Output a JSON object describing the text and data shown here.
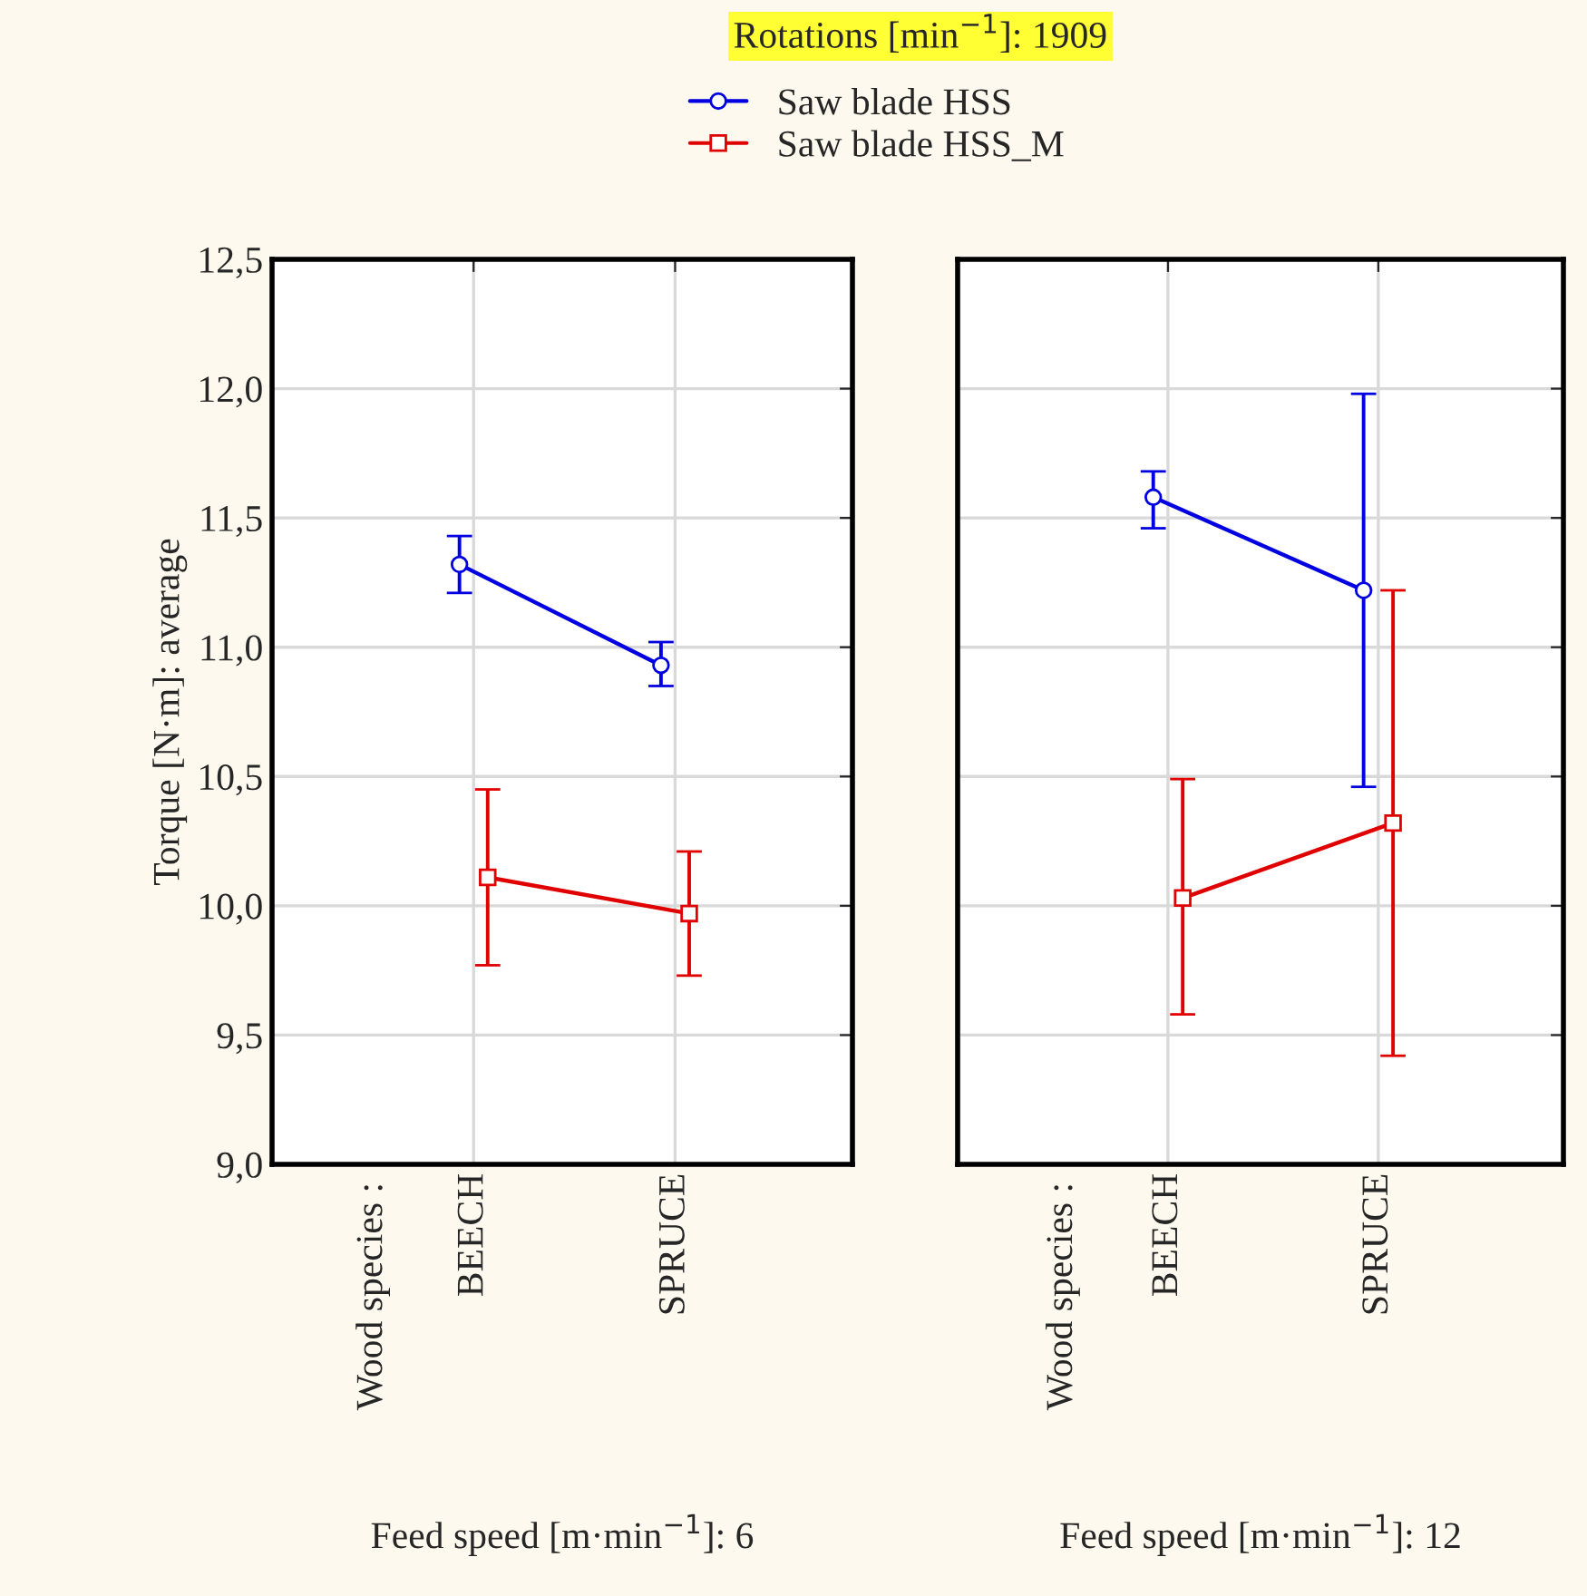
{
  "chart_data": [
    {
      "type": "line",
      "title": "Rotations [min$^{−1}$]: 1909",
      "xlabel": "Feed speed [m·min$^{−1}$]: 6",
      "ylabel": "Torque [N·m]: average",
      "annotations": [
        "Wood species :"
      ],
      "categories": [
        "BEECH",
        "SPRUCE"
      ],
      "series": [
        {
          "name": "Saw blade HSS",
          "color": "#0000e0",
          "marker": "circle",
          "values": [
            11.32,
            10.93
          ],
          "errors": [
            [
              11.21,
              11.43
            ],
            [
              10.85,
              11.02
            ]
          ]
        },
        {
          "name": "Saw blade HSS_M",
          "color": "#e00000",
          "marker": "square",
          "values": [
            10.11,
            9.97
          ],
          "errors": [
            [
              9.77,
              10.45
            ],
            [
              9.73,
              10.21
            ]
          ]
        }
      ],
      "ylim": [
        9.0,
        12.5
      ],
      "yticks": [
        {
          "value": 9.0,
          "label": "9,0"
        },
        {
          "value": 9.5,
          "label": "9,5"
        },
        {
          "value": 10.0,
          "label": "10,0"
        },
        {
          "value": 10.5,
          "label": "10,5"
        },
        {
          "value": 11.0,
          "label": "11,0"
        },
        {
          "value": 11.5,
          "label": "11,5"
        },
        {
          "value": 12.0,
          "label": "12,0"
        },
        {
          "value": 12.5,
          "label": "12,5"
        }
      ],
      "grid": true,
      "legend": "top"
    },
    {
      "type": "line",
      "xlabel": "Feed speed [m·min$^{−1}$]: 12",
      "annotations": [
        "Wood species :"
      ],
      "categories": [
        "BEECH",
        "SPRUCE"
      ],
      "series": [
        {
          "color": "#0000e0",
          "marker": "circle",
          "values": [
            11.58,
            11.22
          ],
          "errors": [
            [
              11.46,
              11.68
            ],
            [
              10.46,
              11.98
            ]
          ]
        },
        {
          "color": "#e00000",
          "marker": "square",
          "values": [
            10.03,
            10.32
          ],
          "errors": [
            [
              9.58,
              10.49
            ],
            [
              9.42,
              11.22
            ]
          ]
        }
      ],
      "ylim": [
        9.0,
        12.5
      ],
      "grid": true,
      "tick_labels": "x",
      "yticks": [
        {
          "value": 9.0,
          "label": null
        },
        {
          "value": 9.5,
          "label": null
        },
        {
          "value": 10.0,
          "label": null
        },
        {
          "value": 10.5,
          "label": null
        },
        {
          "value": 11.0,
          "label": null
        },
        {
          "value": 11.5,
          "label": null
        },
        {
          "value": 12.0,
          "label": null
        },
        {
          "value": 12.5,
          "label": null
        }
      ]
    }
  ]
}
